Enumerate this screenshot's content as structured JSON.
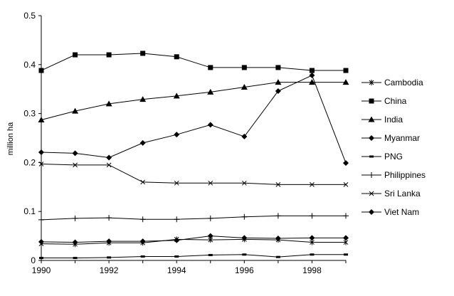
{
  "chart_data": {
    "type": "line",
    "title": "",
    "xlabel": "",
    "ylabel": "million ha",
    "xlim": [
      1990,
      1999
    ],
    "ylim": [
      0,
      0.5
    ],
    "x": [
      1990,
      1991,
      1992,
      1993,
      1994,
      1995,
      1996,
      1997,
      1998,
      1999
    ],
    "x_tick_labels": [
      "1990",
      "1992",
      "1994",
      "1996",
      "1998"
    ],
    "y_tick_labels": [
      "0",
      "0.1",
      "0.2",
      "0.3",
      "0.4",
      "0.5"
    ],
    "grid": false,
    "legend_position": "right",
    "line_color": "#000000",
    "series": [
      {
        "name": "Cambodia",
        "marker": "asterisk",
        "values": [
          0.034,
          0.033,
          0.036,
          0.036,
          0.043,
          0.042,
          0.043,
          0.042,
          0.037,
          0.037
        ]
      },
      {
        "name": "China",
        "marker": "square",
        "values": [
          0.388,
          0.42,
          0.42,
          0.423,
          0.416,
          0.394,
          0.394,
          0.394,
          0.388,
          0.388
        ]
      },
      {
        "name": "India",
        "marker": "triangle",
        "values": [
          0.287,
          0.305,
          0.32,
          0.329,
          0.336,
          0.344,
          0.354,
          0.364,
          0.364,
          0.364
        ]
      },
      {
        "name": "Myanmar",
        "marker": "diamond",
        "values": [
          0.038,
          0.037,
          0.039,
          0.039,
          0.041,
          0.05,
          0.046,
          0.045,
          0.046,
          0.046
        ]
      },
      {
        "name": "PNG",
        "marker": "dash",
        "values": [
          0.005,
          0.005,
          0.006,
          0.008,
          0.008,
          0.011,
          0.012,
          0.007,
          0.012,
          0.012
        ]
      },
      {
        "name": "Philippines",
        "marker": "plus",
        "values": [
          0.083,
          0.086,
          0.087,
          0.084,
          0.084,
          0.086,
          0.089,
          0.091,
          0.091,
          0.091
        ]
      },
      {
        "name": "Sri Lanka",
        "marker": "x",
        "values": [
          0.197,
          0.195,
          0.195,
          0.16,
          0.158,
          0.158,
          0.158,
          0.155,
          0.155,
          0.155
        ]
      },
      {
        "name": "Viet Nam",
        "marker": "diamond",
        "values": [
          0.221,
          0.219,
          0.21,
          0.24,
          0.257,
          0.277,
          0.253,
          0.346,
          0.378,
          0.199
        ]
      }
    ]
  }
}
